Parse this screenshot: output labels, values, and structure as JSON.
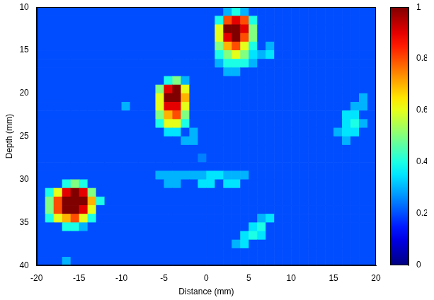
{
  "chart_data": {
    "type": "heatmap",
    "xlabel": "Distance (mm)",
    "ylabel": "Depth (mm)",
    "xlim": [
      -20,
      20
    ],
    "ylim": [
      10,
      40
    ],
    "xticks": [
      -20,
      -15,
      -10,
      -5,
      0,
      5,
      10,
      15,
      20
    ],
    "yticks": [
      10,
      15,
      20,
      25,
      30,
      35,
      40
    ],
    "clim": [
      0,
      1
    ],
    "cticks": [
      0,
      0.2,
      0.4,
      0.6,
      0.8,
      1
    ],
    "cells": [
      [
        0.2,
        0.2,
        0.2,
        0.2,
        0.2,
        0.2,
        0.2,
        0.2,
        0.2,
        0.2,
        0.2,
        0.2,
        0.2,
        0.2,
        0.2,
        0.2,
        0.2,
        0.2,
        0.2,
        0.2,
        0.2,
        0.2,
        0.3,
        0.4,
        0.3,
        0.2,
        0.2,
        0.2,
        0.2,
        0.2,
        0.2,
        0.2,
        0.2,
        0.2,
        0.2,
        0.2,
        0.2,
        0.2,
        0.2,
        0.2
      ],
      [
        0.2,
        0.2,
        0.2,
        0.2,
        0.2,
        0.2,
        0.2,
        0.2,
        0.2,
        0.2,
        0.2,
        0.2,
        0.2,
        0.2,
        0.2,
        0.2,
        0.2,
        0.2,
        0.2,
        0.2,
        0.2,
        0.4,
        0.8,
        0.9,
        0.8,
        0.4,
        0.2,
        0.2,
        0.2,
        0.2,
        0.2,
        0.2,
        0.2,
        0.2,
        0.2,
        0.2,
        0.2,
        0.2,
        0.2,
        0.2
      ],
      [
        0.2,
        0.2,
        0.2,
        0.2,
        0.2,
        0.2,
        0.2,
        0.2,
        0.2,
        0.2,
        0.2,
        0.2,
        0.2,
        0.2,
        0.2,
        0.2,
        0.2,
        0.2,
        0.2,
        0.2,
        0.2,
        0.6,
        1,
        1,
        0.9,
        0.5,
        0.2,
        0.2,
        0.2,
        0.2,
        0.2,
        0.2,
        0.2,
        0.2,
        0.2,
        0.2,
        0.2,
        0.2,
        0.2,
        0.2
      ],
      [
        0.2,
        0.2,
        0.2,
        0.2,
        0.2,
        0.2,
        0.2,
        0.2,
        0.2,
        0.2,
        0.2,
        0.2,
        0.2,
        0.2,
        0.2,
        0.2,
        0.2,
        0.2,
        0.2,
        0.2,
        0.2,
        0.6,
        0.9,
        1,
        0.8,
        0.5,
        0.2,
        0.2,
        0.2,
        0.2,
        0.2,
        0.2,
        0.2,
        0.2,
        0.2,
        0.2,
        0.2,
        0.2,
        0.2,
        0.2
      ],
      [
        0.2,
        0.2,
        0.2,
        0.2,
        0.2,
        0.2,
        0.2,
        0.2,
        0.2,
        0.2,
        0.2,
        0.2,
        0.2,
        0.2,
        0.2,
        0.2,
        0.2,
        0.2,
        0.2,
        0.2,
        0.2,
        0.5,
        0.7,
        0.8,
        0.6,
        0.4,
        0.2,
        0.3,
        0.2,
        0.2,
        0.2,
        0.2,
        0.2,
        0.2,
        0.2,
        0.2,
        0.2,
        0.2,
        0.2,
        0.2
      ],
      [
        0.2,
        0.2,
        0.2,
        0.2,
        0.2,
        0.2,
        0.2,
        0.2,
        0.2,
        0.2,
        0.2,
        0.2,
        0.2,
        0.2,
        0.2,
        0.2,
        0.2,
        0.2,
        0.2,
        0.2,
        0.2,
        0.4,
        0.5,
        0.6,
        0.5,
        0.35,
        0.3,
        0.35,
        0.2,
        0.2,
        0.2,
        0.2,
        0.2,
        0.2,
        0.2,
        0.2,
        0.2,
        0.2,
        0.2,
        0.2
      ],
      [
        0.2,
        0.2,
        0.2,
        0.2,
        0.2,
        0.2,
        0.2,
        0.2,
        0.2,
        0.2,
        0.2,
        0.2,
        0.2,
        0.2,
        0.2,
        0.2,
        0.2,
        0.2,
        0.2,
        0.2,
        0.2,
        0.3,
        0.4,
        0.4,
        0.4,
        0.3,
        0.2,
        0.2,
        0.2,
        0.2,
        0.2,
        0.2,
        0.2,
        0.2,
        0.2,
        0.2,
        0.2,
        0.2,
        0.2,
        0.2
      ],
      [
        0.2,
        0.2,
        0.2,
        0.2,
        0.2,
        0.2,
        0.2,
        0.2,
        0.2,
        0.2,
        0.2,
        0.2,
        0.2,
        0.2,
        0.2,
        0.2,
        0.2,
        0.2,
        0.2,
        0.2,
        0.2,
        0.2,
        0.3,
        0.3,
        0.2,
        0.2,
        0.2,
        0.2,
        0.2,
        0.2,
        0.2,
        0.2,
        0.2,
        0.2,
        0.2,
        0.2,
        0.2,
        0.2,
        0.2,
        0.2
      ],
      [
        0.2,
        0.2,
        0.2,
        0.2,
        0.2,
        0.2,
        0.2,
        0.2,
        0.2,
        0.2,
        0.2,
        0.2,
        0.2,
        0.2,
        0.2,
        0.4,
        0.5,
        0.3,
        0.2,
        0.2,
        0.2,
        0.2,
        0.2,
        0.2,
        0.2,
        0.2,
        0.2,
        0.2,
        0.2,
        0.2,
        0.2,
        0.2,
        0.2,
        0.2,
        0.2,
        0.2,
        0.2,
        0.2,
        0.2,
        0.2
      ],
      [
        0.2,
        0.2,
        0.2,
        0.2,
        0.2,
        0.2,
        0.2,
        0.2,
        0.2,
        0.2,
        0.2,
        0.2,
        0.2,
        0.2,
        0.5,
        0.9,
        1,
        0.6,
        0.2,
        0.2,
        0.2,
        0.2,
        0.2,
        0.2,
        0.2,
        0.2,
        0.2,
        0.2,
        0.2,
        0.2,
        0.2,
        0.2,
        0.2,
        0.2,
        0.2,
        0.2,
        0.2,
        0.2,
        0.2,
        0.2
      ],
      [
        0.2,
        0.2,
        0.2,
        0.2,
        0.2,
        0.2,
        0.2,
        0.2,
        0.2,
        0.2,
        0.2,
        0.2,
        0.2,
        0.2,
        0.6,
        1,
        1,
        0.7,
        0.2,
        0.2,
        0.2,
        0.2,
        0.2,
        0.2,
        0.2,
        0.2,
        0.2,
        0.2,
        0.2,
        0.2,
        0.2,
        0.2,
        0.2,
        0.2,
        0.2,
        0.2,
        0.2,
        0.2,
        0.3,
        0.2
      ],
      [
        0.2,
        0.2,
        0.2,
        0.2,
        0.2,
        0.2,
        0.2,
        0.2,
        0.2,
        0.2,
        0.3,
        0.2,
        0.2,
        0.2,
        0.6,
        0.9,
        0.9,
        0.6,
        0.2,
        0.2,
        0.2,
        0.2,
        0.2,
        0.2,
        0.2,
        0.2,
        0.2,
        0.2,
        0.2,
        0.2,
        0.2,
        0.2,
        0.2,
        0.2,
        0.2,
        0.2,
        0.2,
        0.3,
        0.3,
        0.2
      ],
      [
        0.2,
        0.2,
        0.2,
        0.2,
        0.2,
        0.2,
        0.2,
        0.2,
        0.2,
        0.2,
        0.2,
        0.2,
        0.2,
        0.2,
        0.5,
        0.7,
        0.8,
        0.5,
        0.2,
        0.2,
        0.2,
        0.2,
        0.2,
        0.2,
        0.2,
        0.2,
        0.2,
        0.2,
        0.2,
        0.2,
        0.2,
        0.2,
        0.2,
        0.2,
        0.2,
        0.2,
        0.35,
        0.35,
        0.2,
        0.2
      ],
      [
        0.2,
        0.2,
        0.2,
        0.2,
        0.2,
        0.2,
        0.2,
        0.2,
        0.2,
        0.2,
        0.2,
        0.2,
        0.2,
        0.2,
        0.4,
        0.6,
        0.6,
        0.4,
        0.2,
        0.2,
        0.2,
        0.2,
        0.2,
        0.2,
        0.2,
        0.2,
        0.2,
        0.2,
        0.2,
        0.2,
        0.2,
        0.2,
        0.2,
        0.2,
        0.2,
        0.2,
        0.35,
        0.4,
        0.3,
        0.2
      ],
      [
        0.2,
        0.2,
        0.2,
        0.2,
        0.2,
        0.2,
        0.2,
        0.2,
        0.2,
        0.2,
        0.2,
        0.2,
        0.2,
        0.2,
        0.2,
        0.35,
        0.35,
        0.2,
        0.3,
        0.2,
        0.2,
        0.2,
        0.2,
        0.2,
        0.2,
        0.2,
        0.2,
        0.2,
        0.2,
        0.2,
        0.2,
        0.2,
        0.2,
        0.2,
        0.2,
        0.3,
        0.35,
        0.35,
        0.2,
        0.2
      ],
      [
        0.2,
        0.2,
        0.2,
        0.2,
        0.2,
        0.2,
        0.2,
        0.2,
        0.2,
        0.2,
        0.2,
        0.2,
        0.2,
        0.2,
        0.2,
        0.2,
        0.2,
        0.3,
        0.3,
        0.2,
        0.2,
        0.2,
        0.2,
        0.2,
        0.2,
        0.2,
        0.2,
        0.2,
        0.2,
        0.2,
        0.2,
        0.2,
        0.2,
        0.2,
        0.2,
        0.2,
        0.3,
        0.2,
        0.2,
        0.2
      ],
      [
        0.2,
        0.2,
        0.2,
        0.2,
        0.2,
        0.2,
        0.2,
        0.2,
        0.2,
        0.2,
        0.2,
        0.2,
        0.2,
        0.2,
        0.2,
        0.2,
        0.2,
        0.2,
        0.2,
        0.2,
        0.2,
        0.2,
        0.2,
        0.2,
        0.2,
        0.2,
        0.2,
        0.2,
        0.2,
        0.2,
        0.2,
        0.2,
        0.2,
        0.2,
        0.2,
        0.2,
        0.2,
        0.2,
        0.2,
        0.2
      ],
      [
        0.2,
        0.2,
        0.2,
        0.2,
        0.2,
        0.2,
        0.2,
        0.2,
        0.2,
        0.2,
        0.2,
        0.2,
        0.2,
        0.2,
        0.2,
        0.2,
        0.2,
        0.2,
        0.2,
        0.25,
        0.2,
        0.2,
        0.2,
        0.2,
        0.2,
        0.2,
        0.2,
        0.2,
        0.2,
        0.2,
        0.2,
        0.2,
        0.2,
        0.2,
        0.2,
        0.2,
        0.2,
        0.2,
        0.2,
        0.2
      ],
      [
        0.2,
        0.2,
        0.2,
        0.2,
        0.2,
        0.2,
        0.2,
        0.2,
        0.2,
        0.2,
        0.2,
        0.2,
        0.2,
        0.2,
        0.2,
        0.2,
        0.2,
        0.2,
        0.2,
        0.2,
        0.2,
        0.2,
        0.2,
        0.2,
        0.2,
        0.2,
        0.2,
        0.2,
        0.2,
        0.2,
        0.2,
        0.2,
        0.2,
        0.2,
        0.2,
        0.2,
        0.2,
        0.2,
        0.2,
        0.2
      ],
      [
        0.2,
        0.2,
        0.2,
        0.2,
        0.2,
        0.2,
        0.2,
        0.2,
        0.2,
        0.2,
        0.2,
        0.2,
        0.2,
        0.2,
        0.3,
        0.3,
        0.3,
        0.3,
        0.3,
        0.3,
        0.35,
        0.35,
        0.3,
        0.3,
        0.3,
        0.2,
        0.2,
        0.2,
        0.2,
        0.2,
        0.2,
        0.2,
        0.2,
        0.2,
        0.2,
        0.2,
        0.2,
        0.2,
        0.2,
        0.2
      ],
      [
        0.2,
        0.2,
        0.2,
        0.4,
        0.5,
        0.4,
        0.2,
        0.2,
        0.2,
        0.2,
        0.2,
        0.2,
        0.2,
        0.2,
        0.2,
        0.3,
        0.3,
        0.2,
        0.2,
        0.35,
        0.35,
        0.2,
        0.35,
        0.35,
        0.2,
        0.2,
        0.2,
        0.2,
        0.2,
        0.2,
        0.2,
        0.2,
        0.2,
        0.2,
        0.2,
        0.2,
        0.2,
        0.2,
        0.2,
        0.2
      ],
      [
        0.2,
        0.4,
        0.6,
        0.9,
        1,
        0.9,
        0.5,
        0.2,
        0.2,
        0.2,
        0.2,
        0.2,
        0.2,
        0.2,
        0.2,
        0.2,
        0.2,
        0.2,
        0.2,
        0.2,
        0.2,
        0.2,
        0.2,
        0.2,
        0.2,
        0.2,
        0.2,
        0.2,
        0.2,
        0.2,
        0.2,
        0.2,
        0.2,
        0.2,
        0.2,
        0.2,
        0.2,
        0.2,
        0.2,
        0.2
      ],
      [
        0.2,
        0.5,
        0.8,
        1,
        1,
        1,
        0.7,
        0.4,
        0.2,
        0.2,
        0.2,
        0.2,
        0.2,
        0.2,
        0.2,
        0.2,
        0.2,
        0.2,
        0.2,
        0.2,
        0.2,
        0.2,
        0.2,
        0.2,
        0.2,
        0.2,
        0.2,
        0.2,
        0.2,
        0.2,
        0.2,
        0.2,
        0.2,
        0.2,
        0.2,
        0.2,
        0.2,
        0.2,
        0.2,
        0.2
      ],
      [
        0.2,
        0.5,
        0.8,
        1,
        1,
        0.9,
        0.6,
        0.2,
        0.2,
        0.2,
        0.2,
        0.2,
        0.2,
        0.2,
        0.2,
        0.2,
        0.2,
        0.2,
        0.2,
        0.2,
        0.2,
        0.2,
        0.2,
        0.2,
        0.2,
        0.2,
        0.2,
        0.2,
        0.2,
        0.2,
        0.2,
        0.2,
        0.2,
        0.2,
        0.2,
        0.2,
        0.2,
        0.2,
        0.2,
        0.2
      ],
      [
        0.2,
        0.4,
        0.6,
        0.7,
        0.8,
        0.6,
        0.4,
        0.2,
        0.2,
        0.2,
        0.2,
        0.2,
        0.2,
        0.2,
        0.2,
        0.2,
        0.2,
        0.2,
        0.2,
        0.2,
        0.2,
        0.2,
        0.2,
        0.2,
        0.2,
        0.2,
        0.3,
        0.35,
        0.2,
        0.2,
        0.2,
        0.2,
        0.2,
        0.2,
        0.2,
        0.2,
        0.2,
        0.2,
        0.2,
        0.2
      ],
      [
        0.2,
        0.2,
        0.2,
        0.4,
        0.4,
        0.3,
        0.2,
        0.2,
        0.2,
        0.2,
        0.2,
        0.2,
        0.2,
        0.2,
        0.2,
        0.2,
        0.2,
        0.2,
        0.2,
        0.2,
        0.2,
        0.2,
        0.2,
        0.2,
        0.2,
        0.35,
        0.4,
        0.2,
        0.2,
        0.2,
        0.2,
        0.2,
        0.2,
        0.2,
        0.2,
        0.2,
        0.2,
        0.2,
        0.2,
        0.2
      ],
      [
        0.2,
        0.2,
        0.2,
        0.2,
        0.2,
        0.2,
        0.2,
        0.2,
        0.2,
        0.2,
        0.2,
        0.2,
        0.2,
        0.2,
        0.2,
        0.2,
        0.2,
        0.2,
        0.2,
        0.2,
        0.2,
        0.2,
        0.2,
        0.2,
        0.35,
        0.4,
        0.35,
        0.2,
        0.2,
        0.2,
        0.2,
        0.2,
        0.2,
        0.2,
        0.2,
        0.2,
        0.2,
        0.2,
        0.2,
        0.2
      ],
      [
        0.2,
        0.2,
        0.2,
        0.2,
        0.2,
        0.2,
        0.2,
        0.2,
        0.2,
        0.2,
        0.2,
        0.2,
        0.2,
        0.2,
        0.2,
        0.2,
        0.2,
        0.2,
        0.2,
        0.2,
        0.2,
        0.2,
        0.2,
        0.3,
        0.35,
        0.2,
        0.2,
        0.2,
        0.2,
        0.2,
        0.2,
        0.2,
        0.2,
        0.2,
        0.2,
        0.2,
        0.2,
        0.2,
        0.2,
        0.2
      ],
      [
        0.2,
        0.2,
        0.2,
        0.2,
        0.2,
        0.2,
        0.2,
        0.2,
        0.2,
        0.2,
        0.2,
        0.2,
        0.2,
        0.2,
        0.2,
        0.2,
        0.2,
        0.2,
        0.2,
        0.2,
        0.2,
        0.2,
        0.2,
        0.2,
        0.2,
        0.2,
        0.2,
        0.2,
        0.2,
        0.2,
        0.2,
        0.2,
        0.2,
        0.2,
        0.2,
        0.2,
        0.2,
        0.2,
        0.2,
        0.2
      ],
      [
        0.2,
        0.2,
        0.2,
        0.3,
        0.2,
        0.2,
        0.2,
        0.2,
        0.2,
        0.2,
        0.2,
        0.2,
        0.2,
        0.2,
        0.2,
        0.2,
        0.2,
        0.2,
        0.2,
        0.2,
        0.2,
        0.2,
        0.2,
        0.2,
        0.2,
        0.2,
        0.2,
        0.2,
        0.2,
        0.2,
        0.2,
        0.2,
        0.2,
        0.2,
        0.2,
        0.2,
        0.2,
        0.2,
        0.2,
        0.2
      ]
    ]
  }
}
